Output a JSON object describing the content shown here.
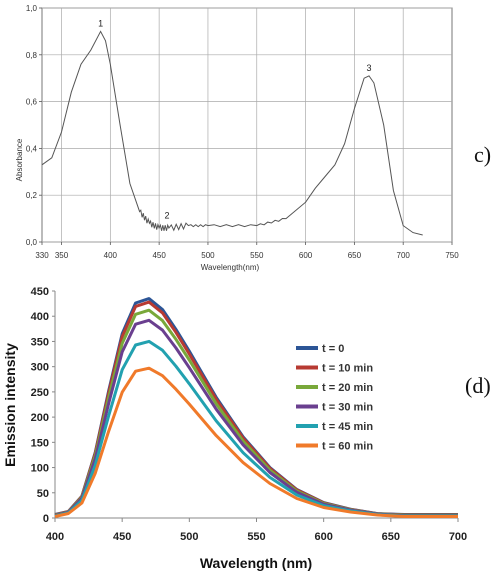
{
  "chart_data": [
    {
      "panel_label": "c)",
      "type": "line",
      "xlabel": "Wavelength(nm)",
      "ylabel": "Absorbance",
      "xlim": [
        330,
        750
      ],
      "ylim": [
        0.0,
        1.0
      ],
      "x_ticks": [
        "330",
        "350",
        "400",
        "450",
        "500",
        "550",
        "600",
        "650",
        "700",
        "750"
      ],
      "y_ticks": [
        "0,0",
        "0,2",
        "0,4",
        "0,6",
        "0,8",
        "1,0"
      ],
      "grid": true,
      "annotations": [
        {
          "text": "1",
          "x": 390,
          "y": 0.92
        },
        {
          "text": "2",
          "x": 458,
          "y": 0.1
        },
        {
          "text": "3",
          "x": 665,
          "y": 0.73
        }
      ],
      "series": [
        {
          "name": "",
          "x": [
            330,
            340,
            350,
            360,
            370,
            380,
            390,
            395,
            400,
            410,
            420,
            430,
            440,
            450,
            460,
            480,
            500,
            550,
            580,
            600,
            610,
            620,
            630,
            640,
            650,
            660,
            665,
            670,
            680,
            690,
            700,
            710,
            720
          ],
          "y": [
            0.33,
            0.36,
            0.47,
            0.64,
            0.76,
            0.82,
            0.9,
            0.86,
            0.76,
            0.5,
            0.25,
            0.13,
            0.08,
            0.06,
            0.06,
            0.07,
            0.07,
            0.07,
            0.1,
            0.17,
            0.23,
            0.28,
            0.33,
            0.42,
            0.57,
            0.7,
            0.71,
            0.68,
            0.5,
            0.22,
            0.07,
            0.04,
            0.03
          ]
        }
      ]
    },
    {
      "panel_label": "(d)",
      "type": "line",
      "xlabel": "Wavelength (nm)",
      "ylabel": "Emission intensity",
      "xlim": [
        400,
        700
      ],
      "ylim": [
        0,
        450
      ],
      "x_ticks": [
        "400",
        "450",
        "500",
        "550",
        "600",
        "650",
        "700"
      ],
      "y_ticks": [
        "0",
        "50",
        "100",
        "150",
        "200",
        "250",
        "300",
        "350",
        "400",
        "450"
      ],
      "grid": false,
      "legend_position": "right",
      "x": [
        400,
        410,
        420,
        430,
        440,
        450,
        460,
        470,
        480,
        490,
        500,
        520,
        540,
        560,
        580,
        600,
        620,
        640,
        660,
        680,
        700
      ],
      "shape": [
        0.01,
        0.03,
        0.1,
        0.3,
        0.58,
        0.84,
        0.98,
        1.0,
        0.95,
        0.86,
        0.76,
        0.55,
        0.37,
        0.23,
        0.13,
        0.07,
        0.04,
        0.02,
        0.01,
        0.005,
        0.003
      ],
      "series": [
        {
          "name": "t = 0",
          "color": "#2c5596",
          "peak": 435
        },
        {
          "name": "t = 10 min",
          "color": "#b73a32",
          "peak": 428
        },
        {
          "name": "t = 20 min",
          "color": "#79a83a",
          "peak": 412
        },
        {
          "name": "t = 30 min",
          "color": "#6a3f8f",
          "peak": 392
        },
        {
          "name": "t = 45 min",
          "color": "#22a1b0",
          "peak": 350
        },
        {
          "name": "t = 60 min",
          "color": "#f07a2a",
          "peak": 297
        }
      ]
    }
  ]
}
